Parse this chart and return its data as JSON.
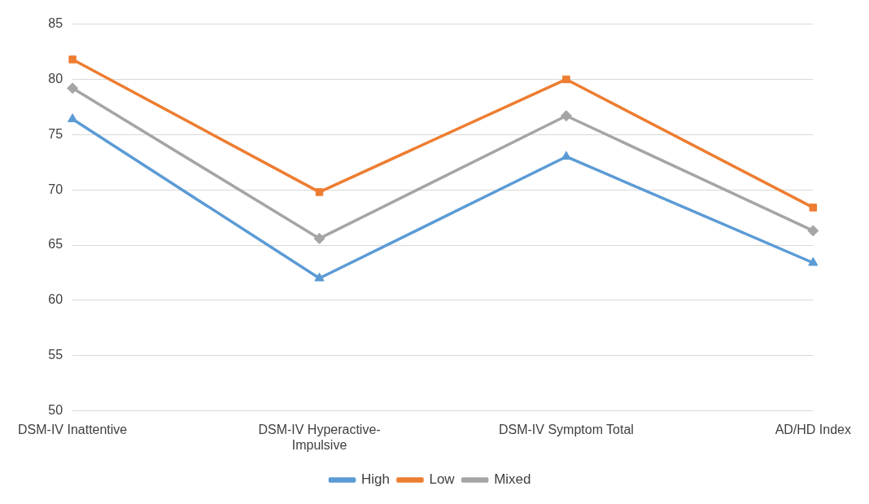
{
  "chart_data": {
    "type": "line",
    "categories": [
      "DSM-IV Inattentive",
      "DSM-IV Hyperactive-Impulsive",
      "DSM-IV Symptom Total",
      "AD/HD Index"
    ],
    "series": [
      {
        "name": "High",
        "color": "#5b9bd5",
        "marker": "triangle",
        "values": [
          76.4,
          62.0,
          73.0,
          63.4
        ]
      },
      {
        "name": "Low",
        "color": "#ed7d31",
        "marker": "square",
        "values": [
          81.8,
          69.8,
          80.0,
          68.4
        ]
      },
      {
        "name": "Mixed",
        "color": "#a5a5a5",
        "marker": "diamond",
        "values": [
          79.2,
          65.6,
          76.7,
          66.3
        ]
      }
    ],
    "ylim": [
      50,
      85
    ],
    "yticks": [
      50,
      55,
      60,
      65,
      70,
      75,
      80,
      85
    ],
    "grid": "y",
    "legend": "bottom",
    "line_style": "solid"
  }
}
